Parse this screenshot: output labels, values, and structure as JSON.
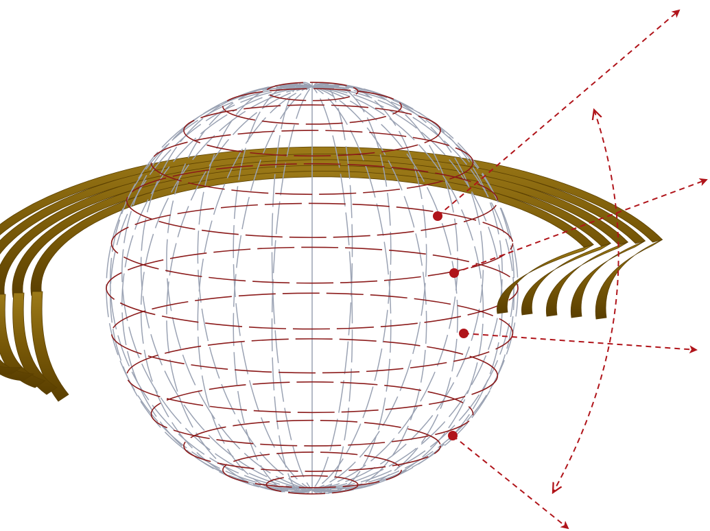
{
  "diagram": {
    "colors": {
      "background": "#ffffff",
      "latitude_lines": "#8b1a1a",
      "longitude_lines": "#9aa2b3",
      "ring_dark": "#5a3f00",
      "ring_mid": "#7a5a08",
      "ring_light": "#9c7a18",
      "arrows": "#b0141a",
      "emission_points": "#b0141a"
    },
    "sphere": {
      "style": "wireframe",
      "latitude_count": 13,
      "longitude_count": 16
    },
    "rings": {
      "count": 5,
      "shape": "partial-arc"
    },
    "rays": {
      "count": 4,
      "style": "dashed",
      "origin_marker": "dot"
    },
    "angular_span": {
      "style": "dashed",
      "ends": "double-headed"
    }
  }
}
